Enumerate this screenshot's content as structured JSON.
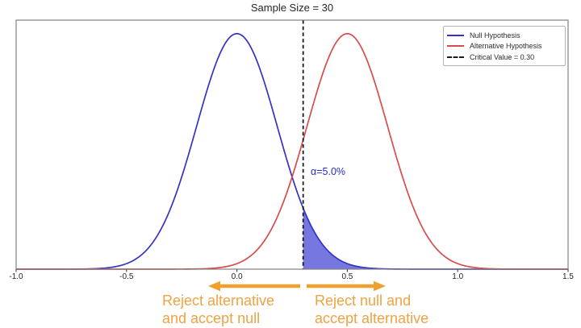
{
  "title": "Sample Size = 30",
  "legend": {
    "items": [
      {
        "label": "Null Hypothesis",
        "color": "#3434c4",
        "style": "solid"
      },
      {
        "label": "Alternative Hypothesis",
        "color": "#d84c4c",
        "style": "solid"
      },
      {
        "label": "Critical Value = 0.30",
        "color": "#1a1a1a",
        "style": "dashed"
      }
    ]
  },
  "axes": {
    "x_tick_labels": [
      "-1.0",
      "-0.5",
      "0.0",
      "0.5",
      "1.0",
      "1.5"
    ]
  },
  "annotations": {
    "alpha_label": "α=5.0%",
    "left_region": {
      "line1": "Reject alternative",
      "line2": "and accept null"
    },
    "right_region": {
      "line1": "Reject null and",
      "line2": "accept alternative"
    }
  },
  "colors": {
    "null_curve": "#3434c4",
    "alt_curve": "#d84c4c",
    "alpha_fill": "rgba(55,55,210,0.68)",
    "alpha_text": "#2a2ac8",
    "critical_line": "#1a1a1a",
    "plot_border": "#808080",
    "tick": "#555555",
    "arrow": "#efa02f",
    "region_text": "#f0a243"
  },
  "chart_data": {
    "type": "line",
    "title": "Sample Size = 30",
    "sample_size": 30,
    "xlim": [
      -1.0,
      1.5
    ],
    "ylim": [
      0,
      2.31
    ],
    "x_ticks": [
      -1.0,
      -0.5,
      0.0,
      0.5,
      1.0,
      1.5
    ],
    "y_ticks": [],
    "grid": false,
    "legend_position": "upper right",
    "series": [
      {
        "name": "Null Hypothesis",
        "distribution": "normal",
        "mean": 0.0,
        "sd": 0.1826,
        "peak_pdf": 2.186,
        "color": "#3434c4"
      },
      {
        "name": "Alternative Hypothesis",
        "distribution": "normal",
        "mean": 0.5,
        "sd": 0.1826,
        "peak_pdf": 2.186,
        "color": "#d84c4c"
      }
    ],
    "critical_value": 0.3,
    "alpha_pct": 5.0,
    "shaded_region": {
      "under": "Null Hypothesis",
      "from": 0.3,
      "to": 1.5,
      "meaning": "alpha / type I error area"
    }
  }
}
